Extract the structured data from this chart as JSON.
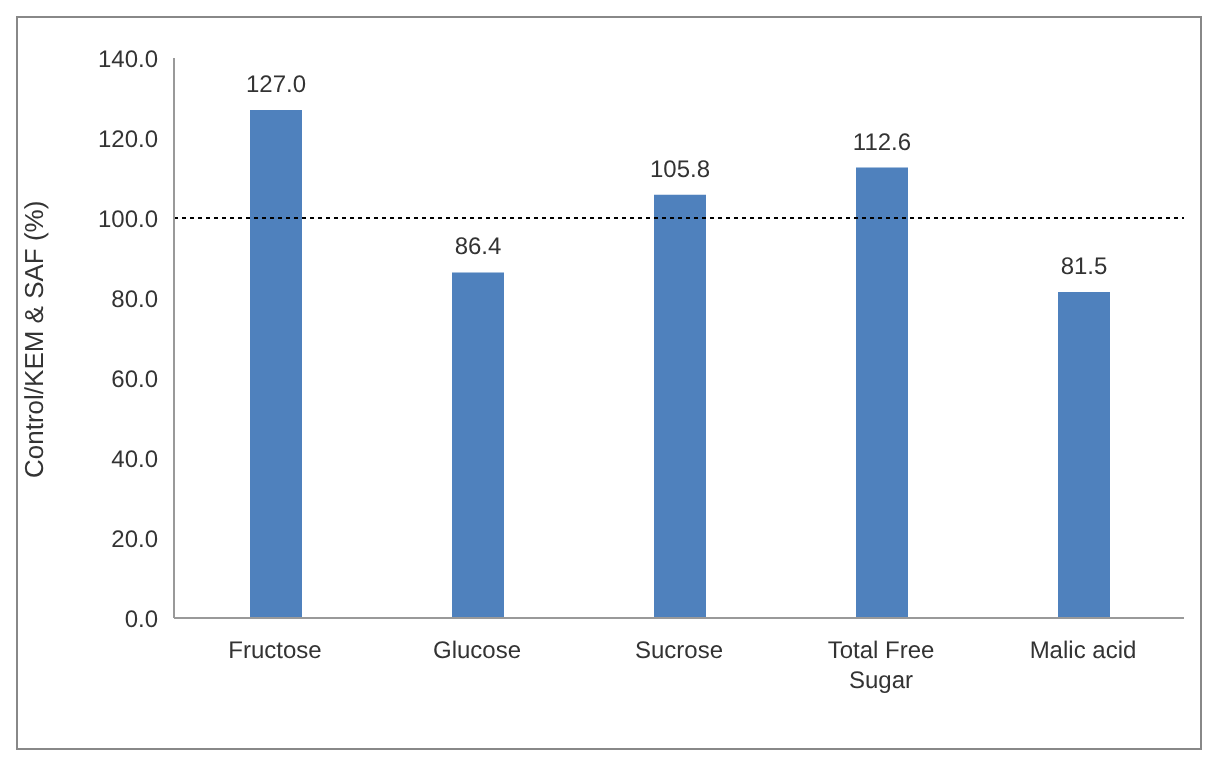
{
  "chart_data": {
    "type": "bar",
    "ylabel": "Control/KEM & SAF (%)",
    "categories": [
      "Fructose",
      "Glucose",
      "Sucrose",
      "Total Free Sugar",
      "Malic acid"
    ],
    "values": [
      127.0,
      86.4,
      105.8,
      112.6,
      81.5
    ],
    "value_labels": [
      "127.0",
      "86.4",
      "105.8",
      "112.6",
      "81.5"
    ],
    "color": "#4f81bd",
    "ylim": [
      0,
      140
    ],
    "yticks": [
      {
        "value": 0,
        "label": "0.0"
      },
      {
        "value": 20,
        "label": "20.0"
      },
      {
        "value": 40,
        "label": "40.0"
      },
      {
        "value": 60,
        "label": "60.0"
      },
      {
        "value": 80,
        "label": "80.0"
      },
      {
        "value": 100,
        "label": "100.0"
      },
      {
        "value": 120,
        "label": "120.0"
      },
      {
        "value": 140,
        "label": "140.0"
      }
    ],
    "ref_lines": [
      {
        "axis": "y",
        "value": 100,
        "line_style": "dotted",
        "color": "#000000"
      }
    ],
    "grid": false,
    "legend": false
  }
}
